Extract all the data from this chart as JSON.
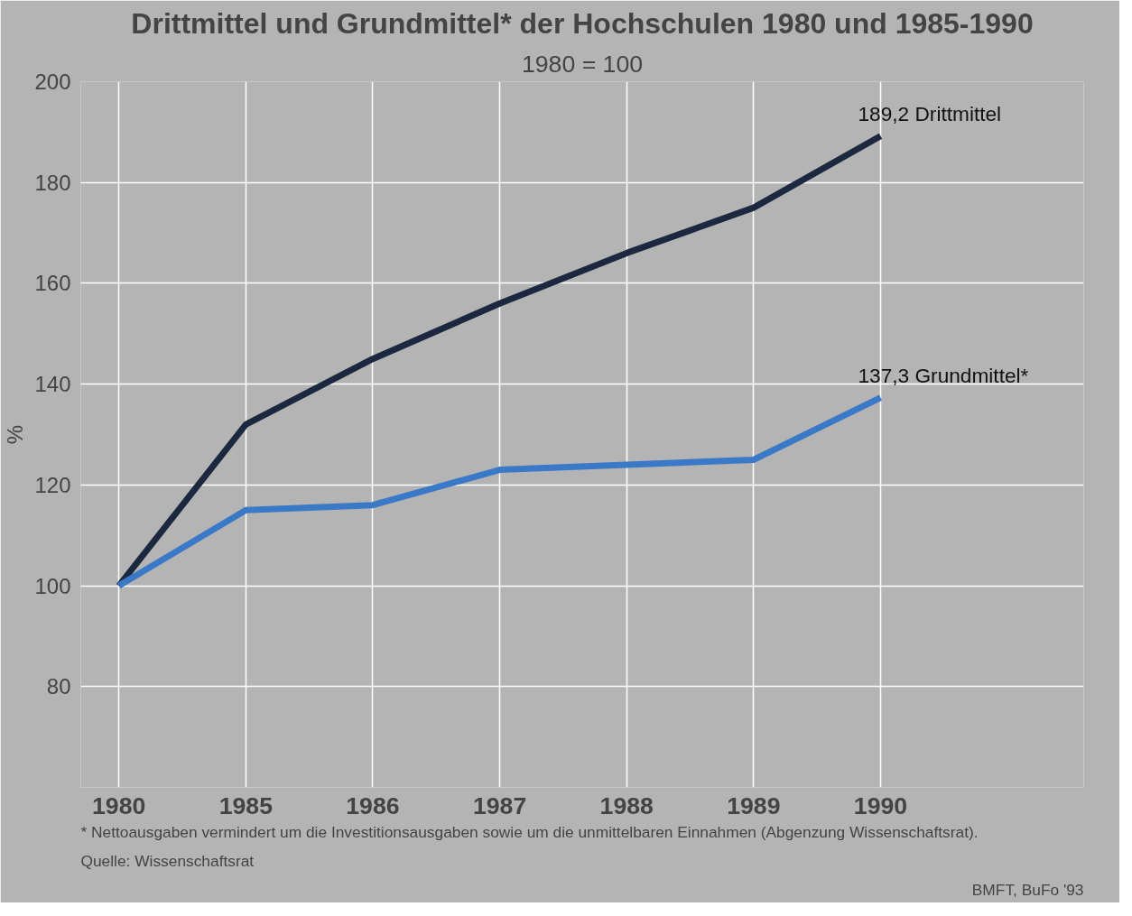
{
  "chart_data": {
    "type": "line",
    "title": "Drittmittel und Grundmittel* der Hochschulen 1980 und 1985-1990",
    "subtitle": "1980 = 100",
    "ylabel": "%",
    "categories": [
      "1980",
      "1985",
      "1986",
      "1987",
      "1988",
      "1989",
      "1990"
    ],
    "series": [
      {
        "name": "Drittmittel",
        "color": "#1c2840",
        "values": [
          100,
          132,
          145,
          156,
          166,
          175,
          189.2
        ],
        "value_labels": [
          null,
          null,
          null,
          null,
          null,
          null,
          "189,2"
        ]
      },
      {
        "name": "Grundmittel*",
        "color": "#3a78c8",
        "values": [
          100,
          115,
          116,
          123,
          124,
          125,
          137.3
        ],
        "value_labels": [
          null,
          null,
          null,
          null,
          null,
          null,
          "137,3"
        ]
      }
    ],
    "ylim": [
      60,
      200
    ],
    "yticks": [
      80,
      100,
      120,
      140,
      160,
      180,
      200
    ],
    "grid": true,
    "marker": "none",
    "line_style": "solid",
    "annotations": [
      "* Nettoausgaben vermindert um die Investitionsausgaben sowie um die unmittelbaren Einnahmen (Abgenzung Wissenschaftsrat).",
      "Quelle: Wissenschaftsrat",
      "BMFT, BuFo '93"
    ]
  }
}
